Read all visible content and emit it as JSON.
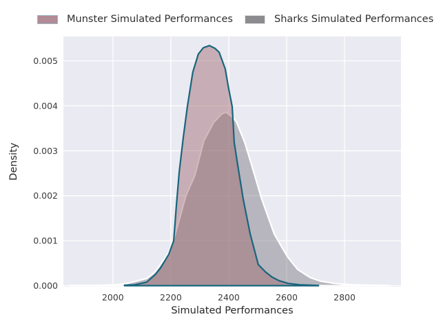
{
  "legend": {
    "items": [
      {
        "label": "Munster Simulated Performances",
        "fill": "#b18b95",
        "edge": "#96bac4"
      },
      {
        "label": "Sharks Simulated Performances",
        "fill": "#8c8c8e",
        "edge": "#e4e4e6"
      }
    ]
  },
  "colors": {
    "plot_background": "#eaeaf2",
    "gridline": "#ffffff",
    "tick_text": "#3b3b3b",
    "label_text": "#262626",
    "munster_line": "#17657d",
    "munster_fill": "rgba(158,100,107,0.45)",
    "sharks_line": "#ffffff",
    "sharks_fill": "rgba(122,119,127,0.45)"
  },
  "chart_data": {
    "type": "area",
    "subtype": "kde-density",
    "title": "",
    "xlabel": "Simulated Performances",
    "ylabel": "Density",
    "xlim": [
      1829,
      2995
    ],
    "ylim": [
      0,
      0.005543
    ],
    "grid": true,
    "legend_position": "top",
    "x_tick_values": [
      2000,
      2200,
      2400,
      2600,
      2800
    ],
    "x_tick_labels": [
      "2000",
      "2200",
      "2400",
      "2600",
      "2800"
    ],
    "y_tick_values": [
      0,
      0.001,
      0.002,
      0.003,
      0.004,
      0.005
    ],
    "y_tick_labels": [
      "0.000",
      "0.001",
      "0.002",
      "0.003",
      "0.004",
      "0.005"
    ],
    "series": [
      {
        "name": "Sharks Simulated Performances",
        "peak": {
          "x": 2390,
          "density": 0.00386
        },
        "points": [
          [
            1850,
            2e-06
          ],
          [
            1965,
            8e-06
          ],
          [
            2014,
            2e-05
          ],
          [
            2050,
            5e-05
          ],
          [
            2086,
            0.00011
          ],
          [
            2117,
            0.00016
          ],
          [
            2145,
            0.0003
          ],
          [
            2164,
            0.00047
          ],
          [
            2193,
            0.00074
          ],
          [
            2210,
            0.00103
          ],
          [
            2229,
            0.00146
          ],
          [
            2252,
            0.002
          ],
          [
            2283,
            0.00245
          ],
          [
            2314,
            0.00322
          ],
          [
            2348,
            0.00363
          ],
          [
            2376,
            0.00382
          ],
          [
            2390,
            0.00386
          ],
          [
            2407,
            0.00378
          ],
          [
            2426,
            0.00365
          ],
          [
            2455,
            0.00319
          ],
          [
            2479,
            0.00268
          ],
          [
            2514,
            0.00192
          ],
          [
            2557,
            0.00115
          ],
          [
            2602,
            0.00065
          ],
          [
            2638,
            0.00036
          ],
          [
            2681,
            0.00018
          ],
          [
            2717,
            0.0001
          ],
          [
            2764,
            5e-05
          ],
          [
            2824,
            2e-05
          ],
          [
            2895,
            1e-05
          ],
          [
            2958,
            2e-06
          ]
        ]
      },
      {
        "name": "Munster Simulated Performances",
        "peak": {
          "x": 2333,
          "density": 0.00534
        },
        "points": [
          [
            2040,
            1e-05
          ],
          [
            2075,
            2e-05
          ],
          [
            2098,
            5e-05
          ],
          [
            2117,
            8e-05
          ],
          [
            2145,
            0.00024
          ],
          [
            2164,
            0.00039
          ],
          [
            2193,
            0.0007
          ],
          [
            2210,
            0.001
          ],
          [
            2219,
            0.00177
          ],
          [
            2229,
            0.00253
          ],
          [
            2243,
            0.0033
          ],
          [
            2257,
            0.00398
          ],
          [
            2276,
            0.00475
          ],
          [
            2295,
            0.00515
          ],
          [
            2312,
            0.00529
          ],
          [
            2333,
            0.00534
          ],
          [
            2352,
            0.00528
          ],
          [
            2367,
            0.00519
          ],
          [
            2388,
            0.00482
          ],
          [
            2400,
            0.00437
          ],
          [
            2412,
            0.00398
          ],
          [
            2419,
            0.00319
          ],
          [
            2431,
            0.00268
          ],
          [
            2450,
            0.00192
          ],
          [
            2474,
            0.00115
          ],
          [
            2502,
            0.00047
          ],
          [
            2526,
            0.00031
          ],
          [
            2550,
            0.00019
          ],
          [
            2574,
            0.00011
          ],
          [
            2605,
            5e-05
          ],
          [
            2645,
            2e-05
          ],
          [
            2710,
            5e-06
          ]
        ]
      }
    ]
  }
}
